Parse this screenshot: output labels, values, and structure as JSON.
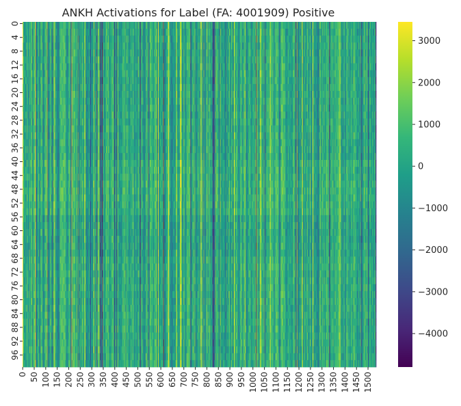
{
  "chart_data": {
    "type": "heatmap",
    "title": "ANKH Activations for Label (FA: 4001909) Positive",
    "xlabel": "",
    "ylabel": "",
    "n_rows": 100,
    "n_cols": 1536,
    "x_ticks": [
      0,
      50,
      100,
      150,
      200,
      250,
      300,
      350,
      400,
      450,
      500,
      550,
      600,
      650,
      700,
      750,
      800,
      850,
      900,
      950,
      1000,
      1050,
      1100,
      1150,
      1200,
      1250,
      1300,
      1350,
      1400,
      1450,
      1500
    ],
    "y_ticks": [
      0,
      4,
      8,
      12,
      16,
      20,
      24,
      28,
      32,
      36,
      40,
      44,
      48,
      52,
      56,
      60,
      64,
      68,
      72,
      76,
      80,
      84,
      88,
      92,
      96
    ],
    "colorbar": {
      "vmin": -4800,
      "vmax": 3450,
      "ticks": [
        3000,
        2000,
        1000,
        0,
        -1000,
        -2000,
        -3000,
        -4000
      ],
      "tick_labels": [
        "3000",
        "2000",
        "1000",
        "0",
        "−1000",
        "−2000",
        "−3000",
        "−4000"
      ],
      "colormap": "viridis"
    },
    "grid": false,
    "legend": "colorbar-right"
  },
  "colors": {
    "viridis": [
      "#440154",
      "#482878",
      "#3e4989",
      "#31688e",
      "#26828e",
      "#1f9e89",
      "#35b779",
      "#6ece58",
      "#b5de2b",
      "#fde725"
    ],
    "text": "#262626"
  }
}
